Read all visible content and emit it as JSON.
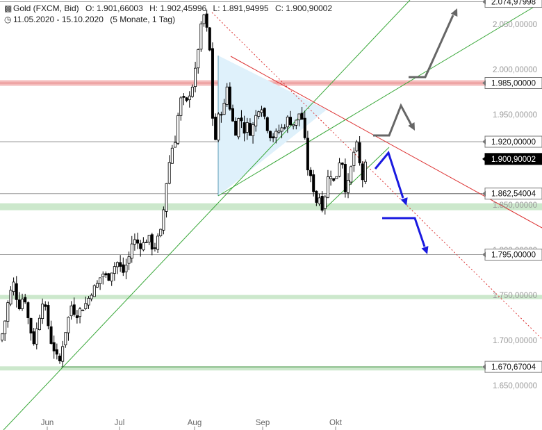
{
  "header": {
    "instrument": "Gold (FXCM, Bid)",
    "open": "O: 1.901,66003",
    "high": "H: 1.902,45996",
    "low": "L: 1.891,94995",
    "close": "C: 1.900,90002",
    "range": "11.05.2020 - 15.10.2020",
    "period": "(5 Monate, 1 Tag)",
    "icons": [
      "candlestick-chart-icon",
      "clock-icon"
    ]
  },
  "chart_data": {
    "type": "candlestick",
    "x_ticks": [
      "Jun",
      "Jul",
      "Aug",
      "Sep",
      "Okt"
    ],
    "y_ticks": [
      "1.650,00000",
      "1.700,00000",
      "1.750,00000",
      "1.800,00000",
      "1.850,00000",
      "1.900,00000",
      "1.950,00000",
      "2.000,00000",
      "2.050,00000"
    ],
    "ylim": [
      1620,
      2078
    ],
    "levels": [
      {
        "value": 2074.97998,
        "label": "2.074,97998",
        "style": "gray"
      },
      {
        "value": 1985,
        "label": "1.985,00000",
        "style": "red-zone"
      },
      {
        "value": 1920,
        "label": "1.920,00000",
        "style": "gray"
      },
      {
        "value": 1900.90002,
        "label": "1.900,90002",
        "style": "current"
      },
      {
        "value": 1862.54004,
        "label": "1.862,54004",
        "style": "gray"
      },
      {
        "value": 1795,
        "label": "1.795,00000",
        "style": "gray"
      },
      {
        "value": 1670.67004,
        "label": "1.670,67004",
        "style": "green"
      }
    ],
    "support_zones": [
      1848,
      1748,
      1669
    ],
    "colors": {
      "up_candle": "#ffffff",
      "down_candle": "#000000",
      "trendline": "#3aa83a",
      "resistance": "#dd3333",
      "triangle_fill": "#dff1fb",
      "scenario_bull": "#666666",
      "scenario_bear": "#1a1ae0",
      "zone_green": "#cce8cc",
      "zone_red": "#f4bcbc",
      "current_box": "#000000"
    },
    "scenarios": [
      {
        "type": "bull-breakout",
        "color": "gray"
      },
      {
        "type": "bull-pullback",
        "color": "gray"
      },
      {
        "type": "bear-drop",
        "color": "blue"
      },
      {
        "type": "bear-extended",
        "color": "blue"
      }
    ]
  }
}
